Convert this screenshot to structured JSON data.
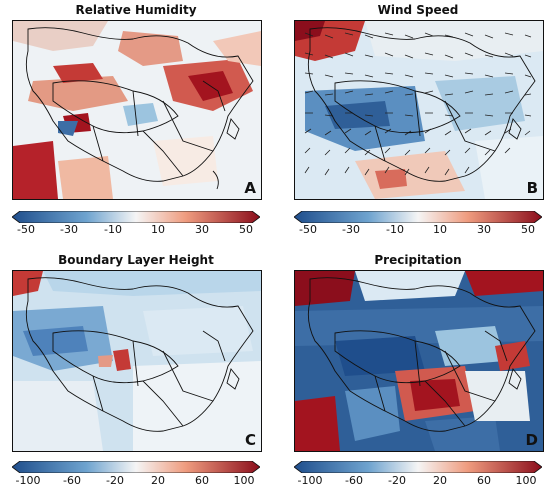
{
  "panels": [
    {
      "title": "Relative Humidity",
      "label": "A",
      "ticks": [
        "-50",
        "-30",
        "-10",
        "10",
        "30",
        "50"
      ]
    },
    {
      "title": "Wind Speed",
      "label": "B",
      "ticks": [
        "-50",
        "-30",
        "-10",
        "10",
        "30",
        "50"
      ]
    },
    {
      "title": "Boundary Layer Height",
      "label": "C",
      "ticks": [
        "-100",
        "-60",
        "-20",
        "20",
        "60",
        "100"
      ]
    },
    {
      "title": "Precipitation",
      "label": "D",
      "ticks": [
        "-100",
        "-60",
        "-20",
        "20",
        "60",
        "100"
      ]
    }
  ],
  "colors": {
    "strong_negative": "#1f4e8c",
    "weak_negative": "#9cc4df",
    "neutral": "#f5f5f5",
    "weak_positive": "#f0a88a",
    "strong_positive": "#a3141f",
    "boundary": "#111111"
  }
}
